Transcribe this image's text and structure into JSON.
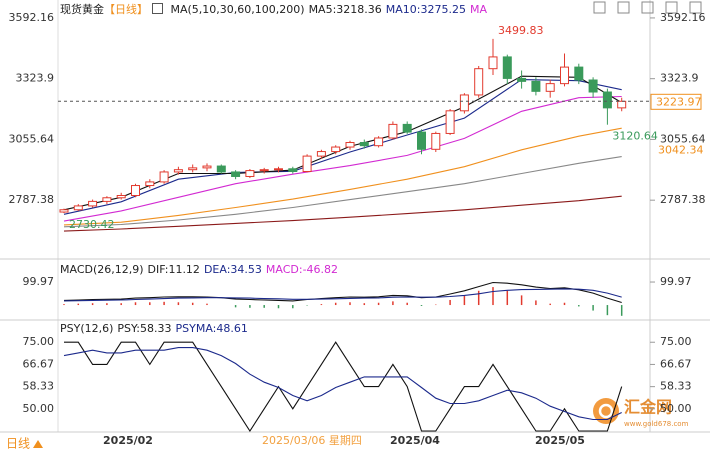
{
  "header": {
    "symbol": "现货黄金",
    "period": "【日线】",
    "ma_label": "MA(5,10,30,60,100,200)",
    "ma5": "MA5:3218.36",
    "ma10": "MA10:3275.25",
    "ma_more": "MA"
  },
  "chart_data": [
    {
      "type": "candlestick",
      "ylim": [
        2532,
        3636
      ],
      "yticks": [
        3592.16,
        3323.9,
        3055.64,
        2787.38
      ],
      "up_color": "#e23a2e",
      "down_color": "#3a9a5b",
      "candles": [
        [
          2735,
          2750,
          2730.42,
          2745
        ],
        [
          2745,
          2770,
          2740,
          2762
        ],
        [
          2762,
          2790,
          2755,
          2782
        ],
        [
          2782,
          2805,
          2770,
          2798
        ],
        [
          2798,
          2820,
          2790,
          2808
        ],
        [
          2808,
          2860,
          2800,
          2852
        ],
        [
          2852,
          2880,
          2840,
          2868
        ],
        [
          2868,
          2920,
          2860,
          2912
        ],
        [
          2912,
          2935,
          2900,
          2922
        ],
        [
          2922,
          2945,
          2910,
          2930
        ],
        [
          2930,
          2950,
          2915,
          2938
        ],
        [
          2938,
          2945,
          2905,
          2912
        ],
        [
          2912,
          2920,
          2880,
          2892
        ],
        [
          2892,
          2925,
          2885,
          2918
        ],
        [
          2918,
          2930,
          2905,
          2922
        ],
        [
          2922,
          2935,
          2910,
          2926
        ],
        [
          2926,
          2935,
          2905,
          2914
        ],
        [
          2914,
          2990,
          2910,
          2982
        ],
        [
          2982,
          3010,
          2970,
          3002
        ],
        [
          3002,
          3030,
          2990,
          3022
        ],
        [
          3022,
          3050,
          3010,
          3042
        ],
        [
          3042,
          3055,
          3015,
          3028
        ],
        [
          3028,
          3070,
          3020,
          3062
        ],
        [
          3062,
          3135,
          3055,
          3122
        ],
        [
          3122,
          3135,
          3080,
          3088
        ],
        [
          3088,
          3100,
          2990,
          3012
        ],
        [
          3012,
          3090,
          3000,
          3082
        ],
        [
          3082,
          3190,
          3075,
          3182
        ],
        [
          3182,
          3260,
          3170,
          3252
        ],
        [
          3252,
          3380,
          3240,
          3368
        ],
        [
          3368,
          3499.83,
          3340,
          3420
        ],
        [
          3420,
          3430,
          3300,
          3325
        ],
        [
          3325,
          3360,
          3280,
          3312
        ],
        [
          3312,
          3330,
          3250,
          3268
        ],
        [
          3268,
          3320,
          3240,
          3302
        ],
        [
          3302,
          3435,
          3290,
          3375
        ],
        [
          3375,
          3390,
          3300,
          3318
        ],
        [
          3318,
          3330,
          3240,
          3265
        ],
        [
          3265,
          3280,
          3120.64,
          3195
        ],
        [
          3195,
          3240,
          3180,
          3223.97
        ]
      ],
      "ma_series": [
        {
          "color": "#8b1a1a",
          "x": [
            0,
            4,
            8,
            12,
            16,
            20,
            24,
            28,
            32,
            36,
            39
          ],
          "values": [
            2651,
            2660,
            2672,
            2685,
            2697,
            2712,
            2728,
            2745,
            2765,
            2785,
            2805
          ]
        },
        {
          "color": "#888888",
          "x": [
            0,
            4,
            8,
            12,
            16,
            20,
            24,
            28,
            32,
            36,
            39
          ],
          "values": [
            2670,
            2680,
            2700,
            2725,
            2755,
            2790,
            2825,
            2860,
            2905,
            2950,
            2980
          ]
        },
        {
          "color": "#f0901e",
          "x": [
            0,
            4,
            8,
            12,
            16,
            20,
            24,
            28,
            32,
            36,
            39
          ],
          "values": [
            2678,
            2690,
            2720,
            2755,
            2792,
            2835,
            2880,
            2935,
            3010,
            3070,
            3105
          ]
        },
        {
          "color": "#d22ad2",
          "x": [
            0,
            4,
            8,
            12,
            16,
            20,
            24,
            28,
            32,
            36,
            39
          ],
          "values": [
            2695,
            2740,
            2800,
            2860,
            2902,
            2940,
            2985,
            3060,
            3180,
            3240,
            3245
          ]
        },
        {
          "color": "#1c2a8c",
          "x": [
            0,
            4,
            8,
            12,
            16,
            20,
            24,
            28,
            32,
            36,
            39
          ],
          "values": [
            2725,
            2780,
            2880,
            2910,
            2915,
            3000,
            3075,
            3150,
            3320,
            3315,
            3275.25
          ]
        },
        {
          "color": "#111111",
          "x": [
            0,
            4,
            8,
            12,
            16,
            20,
            24,
            28,
            32,
            36,
            39
          ],
          "values": [
            2745,
            2800,
            2905,
            2905,
            2920,
            3025,
            3090,
            3200,
            3335,
            3330,
            3218.36
          ]
        }
      ],
      "annotations": [
        {
          "value": 3499.83,
          "color": "#e23a2e"
        },
        {
          "value": 2730.42,
          "color": "#3a9a5b"
        },
        {
          "value": 3120.64,
          "color": "#3a9a5b"
        }
      ],
      "last_price": 3223.97,
      "ma60_last": 3042.34
    },
    {
      "type": "macd",
      "title": "MACD(26,12,9)",
      "dif_label": "DIF:11.12",
      "dea_label": "DEA:34.53",
      "macd_label": "MACD:-46.82",
      "ylim": [
        -65,
        187
      ],
      "yticks": [
        99.97
      ],
      "up_color": "#e23a2e",
      "down_color": "#3a9a5b",
      "dif_color": "#111111",
      "dea_color": "#1c2a8c",
      "dif": [
        20,
        22,
        24,
        25,
        26,
        30,
        32,
        35,
        36,
        36,
        35,
        32,
        26,
        24,
        22,
        20,
        18,
        24,
        28,
        32,
        35,
        34,
        36,
        42,
        40,
        32,
        35,
        48,
        62,
        80,
        98,
        95,
        88,
        78,
        72,
        75,
        66,
        52,
        30,
        11.12
      ],
      "dea": [
        18,
        19,
        20,
        21,
        22,
        24,
        26,
        28,
        30,
        31,
        32,
        32,
        31,
        30,
        28,
        27,
        25,
        25,
        26,
        27,
        29,
        30,
        31,
        34,
        35,
        34,
        34,
        37,
        42,
        49,
        59,
        64,
        67,
        68,
        69,
        70,
        69,
        64,
        52,
        34.53
      ],
      "macd": [
        4,
        6,
        8,
        8,
        8,
        12,
        12,
        14,
        12,
        10,
        6,
        0,
        -10,
        -12,
        -12,
        -14,
        -14,
        -2,
        4,
        10,
        12,
        8,
        10,
        16,
        10,
        -4,
        2,
        22,
        40,
        62,
        78,
        62,
        42,
        20,
        6,
        10,
        -6,
        -24,
        -44,
        -46.82
      ]
    },
    {
      "type": "line",
      "title": "PSY(12,6)",
      "psy_label": "PSY:58.33",
      "psyma_label": "PSYMA:48.61",
      "ylim": [
        41.3,
        82.6
      ],
      "yticks": [
        {
          "value": 75,
          "label": "75.00"
        },
        66.67,
        58.33,
        {
          "value": 50,
          "label": "50.00"
        }
      ],
      "series": [
        {
          "color": "#111111",
          "values": [
            75,
            75,
            66.67,
            66.67,
            75,
            75,
            66.67,
            75,
            75,
            75,
            66.67,
            58.33,
            50,
            41.67,
            50,
            58.33,
            50,
            58.33,
            66.67,
            75,
            66.67,
            58.33,
            58.33,
            66.67,
            58.33,
            41.67,
            41.67,
            50,
            58.33,
            58.33,
            66.67,
            58.33,
            50,
            41.67,
            41.67,
            50,
            41.67,
            41.67,
            41.67,
            58.33
          ]
        },
        {
          "color": "#1c2a8c",
          "values": [
            70,
            71,
            72,
            71,
            71,
            72,
            72,
            72,
            73,
            73,
            72,
            70,
            67,
            63,
            60,
            58,
            55,
            53,
            55,
            58,
            60,
            62,
            62,
            62,
            62,
            58,
            54,
            52,
            52,
            53,
            55,
            57,
            56,
            54,
            51,
            49,
            47,
            46,
            46,
            48.61
          ]
        }
      ]
    }
  ],
  "footer": {
    "period_button": "日线",
    "x_labels": [
      "2025/02",
      "2025/03/06 星期四",
      "2025/04",
      "2025/05"
    ]
  },
  "watermark": {
    "name": "汇金网",
    "url": "www.gold678.com"
  }
}
